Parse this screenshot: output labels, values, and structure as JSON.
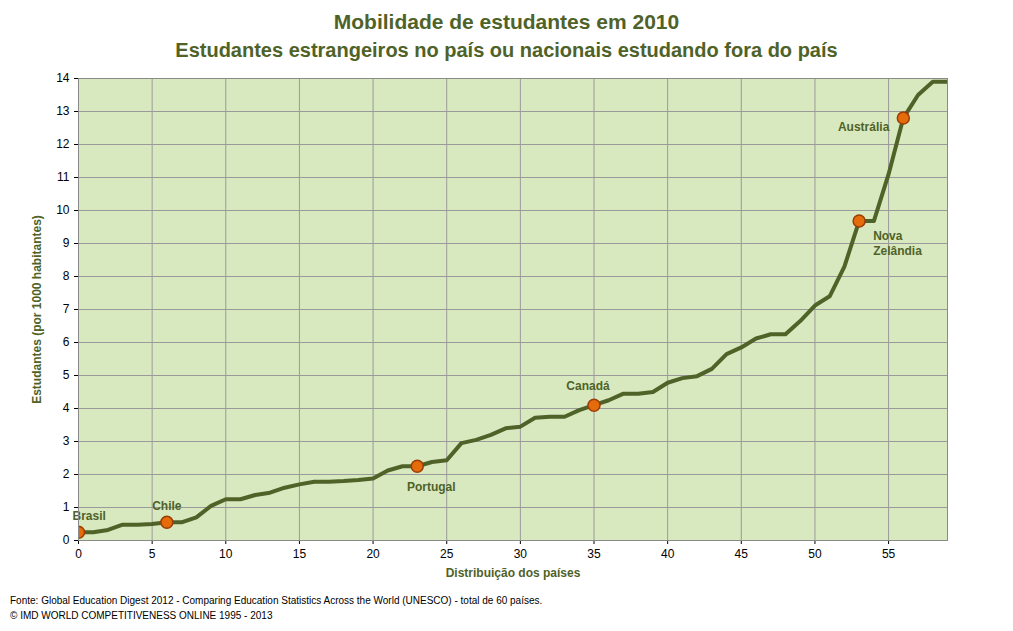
{
  "chart_data": {
    "type": "line",
    "title": "Mobilidade de estudantes em 2010",
    "subtitle": "Estudantes estrangeiros no país ou nacionais estudando fora do país",
    "x_label": "Distribuição dos países",
    "y_label": "Estudantes (por 1000 habitantes)",
    "source": "Fonte: Global Education Digest 2012 - Comparing Education Statistics Across the World (UNESCO) - total de 60 países.",
    "copyright": "© IMD WORLD COMPETITIVENESS ONLINE 1995 - 2013",
    "x": [
      0,
      1,
      2,
      3,
      4,
      5,
      6,
      7,
      8,
      9,
      10,
      11,
      12,
      13,
      14,
      15,
      16,
      17,
      18,
      19,
      20,
      21,
      22,
      23,
      24,
      25,
      26,
      27,
      28,
      29,
      30,
      31,
      32,
      33,
      34,
      35,
      36,
      37,
      38,
      39,
      40,
      41,
      42,
      43,
      44,
      45,
      46,
      47,
      48,
      49,
      50,
      51,
      52,
      53,
      54,
      55,
      56,
      57,
      58,
      59
    ],
    "values": [
      0.25,
      0.25,
      0.32,
      0.48,
      0.48,
      0.5,
      0.55,
      0.55,
      0.7,
      1.05,
      1.25,
      1.25,
      1.38,
      1.45,
      1.6,
      1.7,
      1.78,
      1.78,
      1.8,
      1.83,
      1.88,
      2.12,
      2.25,
      2.25,
      2.38,
      2.43,
      2.95,
      3.05,
      3.2,
      3.4,
      3.45,
      3.72,
      3.75,
      3.75,
      3.95,
      4.1,
      4.25,
      4.45,
      4.45,
      4.5,
      4.78,
      4.92,
      4.98,
      5.2,
      5.65,
      5.85,
      6.12,
      6.25,
      6.25,
      6.65,
      7.12,
      7.4,
      8.3,
      9.68,
      9.68,
      11.1,
      12.8,
      13.5,
      13.9,
      13.9
    ],
    "color": "#4f6228",
    "highlights": [
      {
        "x": 0,
        "label": "Brasil"
      },
      {
        "x": 6,
        "label": "Chile"
      },
      {
        "x": 23,
        "label": "Portugal"
      },
      {
        "x": 35,
        "label": "Canadá"
      },
      {
        "x": 53,
        "label": "Nova\nZelândia"
      },
      {
        "x": 56,
        "label": "Austrália"
      }
    ],
    "marker": "circle",
    "xlim": [
      0,
      59
    ],
    "xticks": [
      0,
      5,
      10,
      15,
      20,
      25,
      30,
      35,
      40,
      45,
      50,
      55
    ],
    "ylim": [
      0,
      14
    ],
    "yticks": [
      0,
      1,
      2,
      3,
      4,
      5,
      6,
      7,
      8,
      9,
      10,
      11,
      12,
      13,
      14
    ],
    "grid": true
  }
}
